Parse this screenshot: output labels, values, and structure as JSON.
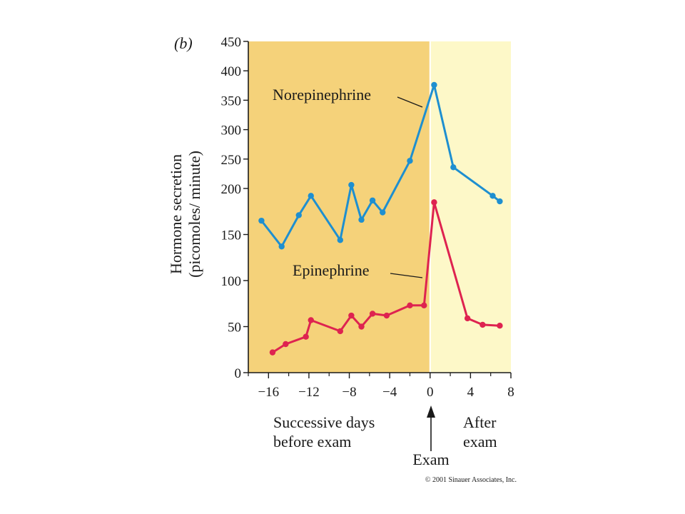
{
  "chart_data": {
    "type": "line",
    "panel_label": "(b)",
    "ylabel_line1": "Hormone secretion",
    "ylabel_line2": "(picomoles/ minute)",
    "xlim": [
      -18,
      8
    ],
    "ylim": [
      0,
      450
    ],
    "y_scale": "broken: 0–200 compressed, 200–450 expanded",
    "x_ticks": [
      -16,
      -12,
      -8,
      -4,
      0,
      4,
      8
    ],
    "x_tick_labels": [
      "−16",
      "−12",
      "−8",
      "−4",
      "0",
      "4",
      "8"
    ],
    "y_ticks": [
      0,
      50,
      100,
      150,
      200,
      250,
      300,
      350,
      400,
      450
    ],
    "y_tick_labels": [
      "0",
      "50",
      "100",
      "150",
      "200",
      "250",
      "300",
      "350",
      "400",
      "450"
    ],
    "regions": [
      {
        "x_range": [
          -18,
          0
        ],
        "color": "#f5d27a"
      },
      {
        "x_range": [
          0,
          8
        ],
        "color": "#fdf8c8"
      }
    ],
    "series": [
      {
        "name": "Norepinephrine",
        "color": "#1e8fd0",
        "x": [
          -16.7,
          -14.7,
          -13,
          -11.8,
          -8.9,
          -7.8,
          -6.8,
          -5.7,
          -4.7,
          -2,
          0.4,
          2.3,
          6.2,
          6.9
        ],
        "y": [
          165,
          137,
          171,
          192,
          144,
          206,
          166,
          187,
          174,
          247,
          376,
          236,
          192,
          186
        ]
      },
      {
        "name": "Epinephrine",
        "color": "#de2350",
        "x": [
          -15.6,
          -14.3,
          -12.3,
          -11.8,
          -8.9,
          -7.8,
          -6.8,
          -5.7,
          -4.3,
          -2,
          -0.6,
          0.4,
          3.7,
          5.2,
          6.9
        ],
        "y": [
          22,
          31,
          39,
          57,
          45,
          62,
          50,
          64,
          62,
          73,
          73,
          185,
          59,
          52,
          51
        ]
      }
    ],
    "annotations": {
      "before": [
        "Successive days",
        "before exam"
      ],
      "after": [
        "After",
        "exam"
      ],
      "exam": "Exam"
    },
    "copyright": "© 2001 Sinauer Associates, Inc."
  }
}
